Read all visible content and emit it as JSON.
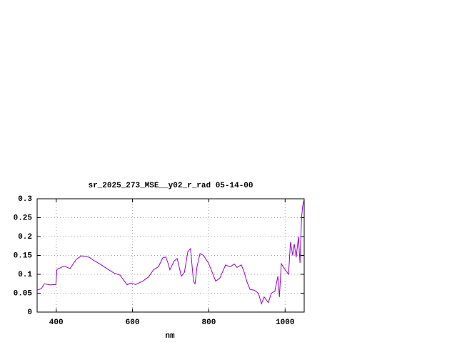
{
  "chart_data": {
    "type": "line",
    "title": "sr_2025_273_MSE__y02_r_rad 05-14-00",
    "x_label": "nm",
    "xlim": [
      350,
      1050
    ],
    "xticks": [
      400,
      600,
      800,
      1000
    ],
    "ylim": [
      0,
      0.3
    ],
    "yticks": [
      0,
      0.05,
      0.1,
      0.15,
      0.2,
      0.25,
      0.3
    ],
    "grid": true,
    "series": [
      {
        "color": "#9400d3",
        "x": [
          350,
          361,
          369,
          384,
          399,
          402,
          421,
          436,
          453,
          466,
          487,
          496,
          515,
          533,
          552,
          567,
          580,
          586,
          595,
          608,
          627,
          642,
          655,
          668,
          679,
          687,
          693,
          698,
          709,
          717,
          728,
          736,
          745,
          752,
          760,
          764,
          769,
          777,
          786,
          799,
          807,
          818,
          829,
          844,
          855,
          867,
          874,
          885,
          893,
          900,
          908,
          919,
          930,
          938,
          945,
          956,
          964,
          973,
          981,
          985,
          990,
          998,
          1009,
          1014,
          1020,
          1024,
          1029,
          1035,
          1039,
          1043,
          1046,
          1050
        ],
        "values": [
          0.058,
          0.062,
          0.075,
          0.072,
          0.073,
          0.113,
          0.122,
          0.115,
          0.14,
          0.149,
          0.145,
          0.138,
          0.127,
          0.115,
          0.103,
          0.098,
          0.08,
          0.072,
          0.077,
          0.073,
          0.082,
          0.093,
          0.112,
          0.12,
          0.143,
          0.146,
          0.13,
          0.112,
          0.135,
          0.142,
          0.095,
          0.105,
          0.16,
          0.168,
          0.08,
          0.075,
          0.12,
          0.155,
          0.15,
          0.13,
          0.11,
          0.082,
          0.09,
          0.125,
          0.12,
          0.127,
          0.118,
          0.125,
          0.105,
          0.08,
          0.06,
          0.058,
          0.05,
          0.022,
          0.04,
          0.025,
          0.05,
          0.055,
          0.095,
          0.04,
          0.128,
          0.115,
          0.1,
          0.185,
          0.15,
          0.18,
          0.145,
          0.2,
          0.13,
          0.25,
          0.28,
          0.3
        ]
      }
    ]
  }
}
